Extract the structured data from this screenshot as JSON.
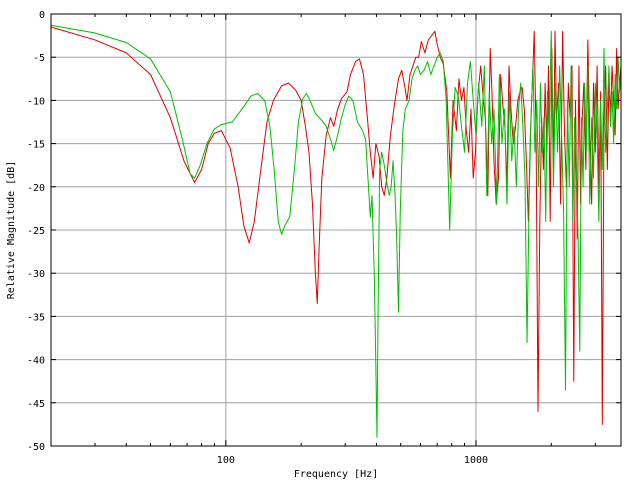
{
  "chart_data": {
    "type": "line",
    "xlabel": "Frequency [Hz]",
    "ylabel": "Relative Magnitude [dB]",
    "xscale": "log",
    "xlim": [
      20,
      3800
    ],
    "ylim": [
      -50,
      0
    ],
    "grid": true,
    "legend": "none",
    "x_ticks": [
      100,
      1000
    ],
    "x_tick_labels": [
      "100",
      "1000"
    ],
    "y_ticks": [
      0,
      -5,
      -10,
      -15,
      -20,
      -25,
      -30,
      -35,
      -40,
      -45,
      -50
    ],
    "y_tick_labels": [
      "0",
      "-5",
      "-10",
      "-15",
      "-20",
      "-25",
      "-30",
      "-35",
      "-40",
      "-45",
      "-50"
    ],
    "colors": {
      "grid": "#a0a0a0",
      "frame": "#000000"
    },
    "series": [
      {
        "color": "#e00000",
        "points": [
          [
            20,
            -1.5
          ],
          [
            30,
            -3
          ],
          [
            40,
            -4.5
          ],
          [
            50,
            -7
          ],
          [
            60,
            -12
          ],
          [
            68,
            -17
          ],
          [
            75,
            -19.5
          ],
          [
            80,
            -18
          ],
          [
            85,
            -15
          ],
          [
            90,
            -13.8
          ],
          [
            96,
            -13.5
          ],
          [
            104,
            -15.5
          ],
          [
            112,
            -20
          ],
          [
            118,
            -24.5
          ],
          [
            124,
            -26.5
          ],
          [
            130,
            -24
          ],
          [
            138,
            -18
          ],
          [
            146,
            -12.5
          ],
          [
            155,
            -10
          ],
          [
            167,
            -8.3
          ],
          [
            178,
            -8
          ],
          [
            190,
            -8.8
          ],
          [
            200,
            -10
          ],
          [
            208,
            -13
          ],
          [
            215,
            -16
          ],
          [
            222,
            -22
          ],
          [
            228,
            -30
          ],
          [
            232,
            -33.5
          ],
          [
            236,
            -27
          ],
          [
            242,
            -19
          ],
          [
            252,
            -14
          ],
          [
            262,
            -12
          ],
          [
            270,
            -13
          ],
          [
            280,
            -11
          ],
          [
            290,
            -9.8
          ],
          [
            305,
            -9
          ],
          [
            315,
            -7
          ],
          [
            330,
            -5.5
          ],
          [
            342,
            -5.2
          ],
          [
            355,
            -7
          ],
          [
            368,
            -12
          ],
          [
            378,
            -16
          ],
          [
            388,
            -19
          ],
          [
            398,
            -15
          ],
          [
            410,
            -16.5
          ],
          [
            420,
            -20
          ],
          [
            430,
            -21
          ],
          [
            440,
            -19
          ],
          [
            455,
            -14
          ],
          [
            472,
            -10.5
          ],
          [
            490,
            -7.5
          ],
          [
            505,
            -6.5
          ],
          [
            520,
            -8.5
          ],
          [
            530,
            -10
          ],
          [
            545,
            -7
          ],
          [
            560,
            -6
          ],
          [
            575,
            -5
          ],
          [
            590,
            -5
          ],
          [
            605,
            -3.2
          ],
          [
            625,
            -4.5
          ],
          [
            645,
            -3
          ],
          [
            665,
            -2.5
          ],
          [
            685,
            -2
          ],
          [
            700,
            -3.5
          ],
          [
            720,
            -5
          ],
          [
            740,
            -5.8
          ],
          [
            765,
            -9
          ],
          [
            790,
            -19
          ],
          [
            810,
            -10
          ],
          [
            835,
            -13.5
          ],
          [
            855,
            -7.5
          ],
          [
            875,
            -10
          ],
          [
            895,
            -8.5
          ],
          [
            915,
            -13.5
          ],
          [
            935,
            -16
          ],
          [
            955,
            -11
          ],
          [
            975,
            -19
          ],
          [
            995,
            -16
          ],
          [
            1020,
            -9
          ],
          [
            1045,
            -6
          ],
          [
            1070,
            -10
          ],
          [
            1090,
            -12
          ],
          [
            1115,
            -21
          ],
          [
            1140,
            -4
          ],
          [
            1160,
            -9.5
          ],
          [
            1180,
            -17
          ],
          [
            1205,
            -22
          ],
          [
            1230,
            -19
          ],
          [
            1255,
            -7
          ],
          [
            1280,
            -10.5
          ],
          [
            1305,
            -13
          ],
          [
            1330,
            -20
          ],
          [
            1355,
            -6
          ],
          [
            1380,
            -11
          ],
          [
            1410,
            -15
          ],
          [
            1440,
            -13
          ],
          [
            1470,
            -10
          ],
          [
            1500,
            -9
          ],
          [
            1530,
            -8.5
          ],
          [
            1560,
            -11
          ],
          [
            1590,
            -17
          ],
          [
            1620,
            -24
          ],
          [
            1650,
            -14
          ],
          [
            1680,
            -8
          ],
          [
            1710,
            -2
          ],
          [
            1740,
            -15
          ],
          [
            1770,
            -46
          ],
          [
            1800,
            -24
          ],
          [
            1830,
            -12
          ],
          [
            1860,
            -18
          ],
          [
            1890,
            -8
          ],
          [
            1920,
            -16
          ],
          [
            1950,
            -6
          ],
          [
            1980,
            -24
          ],
          [
            2010,
            -4
          ],
          [
            2040,
            -18
          ],
          [
            2070,
            -2
          ],
          [
            2100,
            -12
          ],
          [
            2140,
            -8
          ],
          [
            2180,
            -22
          ],
          [
            2220,
            -2
          ],
          [
            2260,
            -14
          ],
          [
            2300,
            -20
          ],
          [
            2340,
            -8
          ],
          [
            2380,
            -12
          ],
          [
            2420,
            -6
          ],
          [
            2460,
            -42.5
          ],
          [
            2500,
            -10
          ],
          [
            2540,
            -26
          ],
          [
            2580,
            -6
          ],
          [
            2620,
            -22
          ],
          [
            2660,
            -12
          ],
          [
            2700,
            -8
          ],
          [
            2750,
            -18
          ],
          [
            2800,
            -3
          ],
          [
            2850,
            -14
          ],
          [
            2900,
            -22
          ],
          [
            2950,
            -8
          ],
          [
            3000,
            -16
          ],
          [
            3050,
            -6
          ],
          [
            3100,
            -20
          ],
          [
            3150,
            -9
          ],
          [
            3200,
            -47.5
          ],
          [
            3250,
            -12
          ],
          [
            3300,
            -6
          ],
          [
            3350,
            -18
          ],
          [
            3400,
            -8
          ],
          [
            3450,
            -12
          ],
          [
            3500,
            -6
          ],
          [
            3550,
            -10
          ],
          [
            3600,
            -14
          ],
          [
            3650,
            -4
          ],
          [
            3700,
            -11
          ],
          [
            3750,
            -8
          ],
          [
            3800,
            -6
          ]
        ]
      },
      {
        "color": "#00c000",
        "points": [
          [
            20,
            -1.3
          ],
          [
            30,
            -2.2
          ],
          [
            40,
            -3.3
          ],
          [
            50,
            -5.2
          ],
          [
            60,
            -9
          ],
          [
            67,
            -14.5
          ],
          [
            72,
            -18.5
          ],
          [
            75,
            -19
          ],
          [
            79,
            -17.5
          ],
          [
            84,
            -15
          ],
          [
            90,
            -13.3
          ],
          [
            96,
            -12.8
          ],
          [
            106,
            -12.5
          ],
          [
            116,
            -11
          ],
          [
            126,
            -9.5
          ],
          [
            134,
            -9.2
          ],
          [
            143,
            -10
          ],
          [
            150,
            -13
          ],
          [
            156,
            -18
          ],
          [
            162,
            -24
          ],
          [
            167,
            -25.5
          ],
          [
            172,
            -24.5
          ],
          [
            180,
            -23.5
          ],
          [
            188,
            -18
          ],
          [
            195,
            -12.5
          ],
          [
            203,
            -9.8
          ],
          [
            210,
            -9.2
          ],
          [
            217,
            -10
          ],
          [
            228,
            -11.5
          ],
          [
            240,
            -12.2
          ],
          [
            252,
            -13
          ],
          [
            262,
            -14.5
          ],
          [
            270,
            -15.8
          ],
          [
            280,
            -14
          ],
          [
            290,
            -12
          ],
          [
            300,
            -10.5
          ],
          [
            310,
            -9.5
          ],
          [
            322,
            -10
          ],
          [
            336,
            -12.5
          ],
          [
            344,
            -13
          ],
          [
            352,
            -13.5
          ],
          [
            362,
            -14.5
          ],
          [
            370,
            -19
          ],
          [
            378,
            -23.5
          ],
          [
            384,
            -21
          ],
          [
            392,
            -30
          ],
          [
            398,
            -41
          ],
          [
            402,
            -49
          ],
          [
            406,
            -35
          ],
          [
            412,
            -18
          ],
          [
            420,
            -16
          ],
          [
            430,
            -17.5
          ],
          [
            440,
            -19.5
          ],
          [
            450,
            -21
          ],
          [
            458,
            -20
          ],
          [
            466,
            -17
          ],
          [
            474,
            -20.5
          ],
          [
            482,
            -26
          ],
          [
            490,
            -34.5
          ],
          [
            498,
            -23
          ],
          [
            510,
            -13.5
          ],
          [
            522,
            -11
          ],
          [
            540,
            -10
          ],
          [
            555,
            -7.5
          ],
          [
            570,
            -6.5
          ],
          [
            585,
            -6
          ],
          [
            600,
            -7
          ],
          [
            620,
            -6.5
          ],
          [
            640,
            -5.5
          ],
          [
            660,
            -7
          ],
          [
            680,
            -6
          ],
          [
            700,
            -5
          ],
          [
            720,
            -4.5
          ],
          [
            740,
            -5.5
          ],
          [
            760,
            -10
          ],
          [
            785,
            -25
          ],
          [
            805,
            -14
          ],
          [
            825,
            -8.5
          ],
          [
            850,
            -9.5
          ],
          [
            875,
            -13
          ],
          [
            900,
            -16
          ],
          [
            925,
            -8
          ],
          [
            950,
            -5.5
          ],
          [
            975,
            -10
          ],
          [
            1000,
            -14
          ],
          [
            1025,
            -8
          ],
          [
            1055,
            -13
          ],
          [
            1080,
            -6
          ],
          [
            1105,
            -21
          ],
          [
            1130,
            -9
          ],
          [
            1155,
            -15
          ],
          [
            1180,
            -11
          ],
          [
            1210,
            -22
          ],
          [
            1240,
            -7
          ],
          [
            1270,
            -15
          ],
          [
            1300,
            -11
          ],
          [
            1330,
            -22
          ],
          [
            1360,
            -9
          ],
          [
            1390,
            -17
          ],
          [
            1420,
            -13
          ],
          [
            1450,
            -20
          ],
          [
            1480,
            -11
          ],
          [
            1510,
            -8
          ],
          [
            1540,
            -13
          ],
          [
            1570,
            -19
          ],
          [
            1600,
            -38
          ],
          [
            1630,
            -22
          ],
          [
            1660,
            -12
          ],
          [
            1690,
            -6
          ],
          [
            1720,
            -16
          ],
          [
            1750,
            -10
          ],
          [
            1780,
            -20
          ],
          [
            1810,
            -8
          ],
          [
            1840,
            -16
          ],
          [
            1870,
            -12
          ],
          [
            1900,
            -24
          ],
          [
            1930,
            -9
          ],
          [
            1960,
            -14
          ],
          [
            2000,
            -2
          ],
          [
            2040,
            -20
          ],
          [
            2080,
            -8
          ],
          [
            2120,
            -16
          ],
          [
            2160,
            -6
          ],
          [
            2200,
            -14
          ],
          [
            2240,
            -23
          ],
          [
            2280,
            -43.5
          ],
          [
            2320,
            -10
          ],
          [
            2360,
            -20
          ],
          [
            2400,
            -6
          ],
          [
            2440,
            -24
          ],
          [
            2480,
            -12
          ],
          [
            2520,
            -18
          ],
          [
            2560,
            -26
          ],
          [
            2600,
            -39
          ],
          [
            2640,
            -12
          ],
          [
            2680,
            -20
          ],
          [
            2720,
            -8
          ],
          [
            2760,
            -16
          ],
          [
            2800,
            -6
          ],
          [
            2850,
            -22
          ],
          [
            2900,
            -12
          ],
          [
            2950,
            -19
          ],
          [
            3000,
            -8
          ],
          [
            3050,
            -14
          ],
          [
            3100,
            -24
          ],
          [
            3150,
            -10
          ],
          [
            3200,
            -18
          ],
          [
            3250,
            -4
          ],
          [
            3300,
            -16
          ],
          [
            3350,
            -11
          ],
          [
            3400,
            -6
          ],
          [
            3450,
            -13
          ],
          [
            3500,
            -9
          ],
          [
            3550,
            -15
          ],
          [
            3600,
            -7
          ],
          [
            3650,
            -11
          ],
          [
            3700,
            -5
          ],
          [
            3750,
            -9
          ],
          [
            3800,
            -7
          ]
        ]
      }
    ]
  }
}
